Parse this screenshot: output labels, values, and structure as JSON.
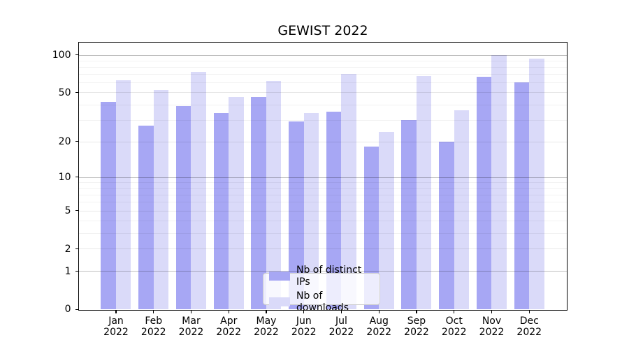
{
  "figure": {
    "title": "GEWIST 2022"
  },
  "chart_data": {
    "type": "bar",
    "title": "GEWIST 2022",
    "categories": [
      "Jan 2022",
      "Feb 2022",
      "Mar 2022",
      "Apr 2022",
      "May 2022",
      "Jun 2022",
      "Jul 2022",
      "Aug 2022",
      "Sep 2022",
      "Oct 2022",
      "Nov 2022",
      "Dec 2022"
    ],
    "category_line1": [
      "Jan",
      "Feb",
      "Mar",
      "Apr",
      "May",
      "Jun",
      "Jul",
      "Aug",
      "Sep",
      "Oct",
      "Nov",
      "Dec"
    ],
    "category_line2": [
      "2022",
      "2022",
      "2022",
      "2022",
      "2022",
      "2022",
      "2022",
      "2022",
      "2022",
      "2022",
      "2022",
      "2022"
    ],
    "series": [
      {
        "name": "Nb of distinct IPs",
        "color": "#a7a7f4",
        "values": [
          42,
          27,
          39,
          34,
          46,
          29,
          35,
          18,
          30,
          20,
          67,
          60
        ]
      },
      {
        "name": "Nb of downloads",
        "color": "#dadaf9",
        "values": [
          63,
          52,
          73,
          46,
          62,
          34,
          70,
          24,
          68,
          36,
          100,
          93
        ]
      }
    ],
    "xlabel": "",
    "ylabel": "",
    "yscale": "log1p",
    "ylim": [
      0,
      126
    ],
    "yticks": [
      0,
      1,
      2,
      5,
      10,
      20,
      50,
      100
    ],
    "ytick_labels": [
      "0",
      "1",
      "2",
      "5",
      "10",
      "20",
      "50",
      "100"
    ],
    "ytick_major_grid": [
      1,
      10,
      100
    ],
    "ytick_mid_grid": [
      2,
      5,
      20,
      50
    ],
    "ytick_minor_grid": [
      3,
      4,
      6,
      7,
      8,
      9,
      30,
      40,
      60,
      70,
      80,
      90
    ],
    "grid": "horizontal",
    "legend_position": "lower center"
  }
}
